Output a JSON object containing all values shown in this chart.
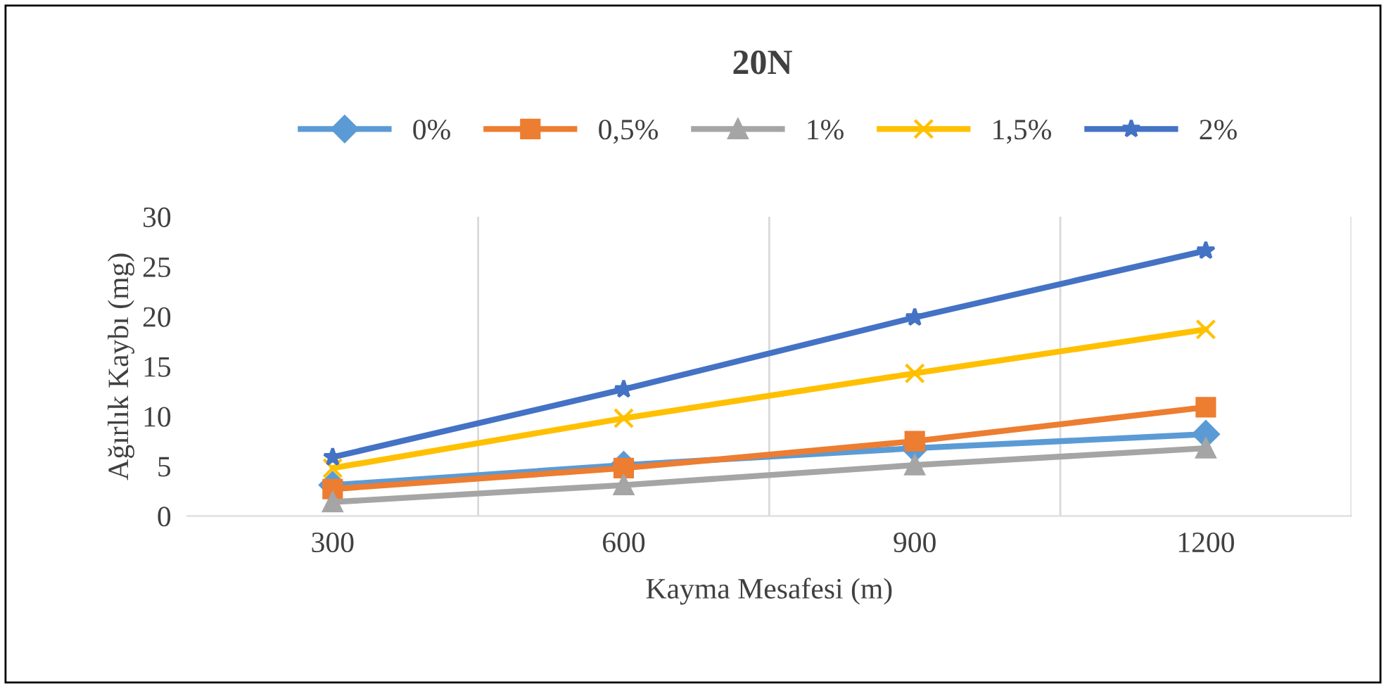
{
  "chart_data": {
    "type": "line",
    "title": "20N",
    "xlabel": "Kayma Mesafesi (m)",
    "ylabel": "Ağırlık Kaybı (mg)",
    "categories": [
      "300",
      "600",
      "900",
      "1200"
    ],
    "series": [
      {
        "name": "0%",
        "color": "#5b9bd5",
        "marker": "diamond",
        "values": [
          3.1,
          5.1,
          6.8,
          8.2
        ]
      },
      {
        "name": "0,5%",
        "color": "#ed7d31",
        "marker": "square",
        "values": [
          2.7,
          4.8,
          7.5,
          10.9
        ]
      },
      {
        "name": "1%",
        "color": "#a5a5a5",
        "marker": "triangle",
        "values": [
          1.4,
          3.1,
          5.1,
          6.8
        ]
      },
      {
        "name": "1,5%",
        "color": "#ffc000",
        "marker": "cross",
        "values": [
          4.8,
          9.8,
          14.3,
          18.7
        ]
      },
      {
        "name": "2%",
        "color": "#4472c4",
        "marker": "star",
        "values": [
          5.9,
          12.7,
          19.9,
          26.6
        ]
      }
    ],
    "ylim": [
      0,
      30
    ],
    "yticks": [
      0,
      5,
      10,
      15,
      20,
      25,
      30
    ],
    "grid": "x",
    "legend": "top",
    "line_style": "solid"
  }
}
